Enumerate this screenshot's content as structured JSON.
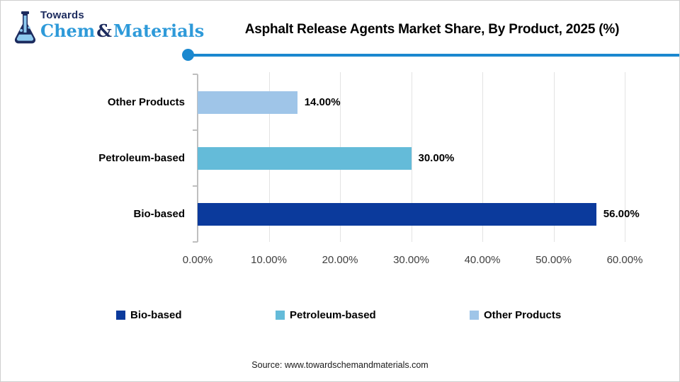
{
  "brand": {
    "towards": "Towards",
    "chem": "Chem",
    "amp": "&",
    "materials": "Materials"
  },
  "header": {
    "title": "Asphalt Release Agents Market Share, By Product, 2025 (%)"
  },
  "chart_data": {
    "type": "bar",
    "orientation": "horizontal",
    "title": "Asphalt Release Agents Market Share, By Product, 2025 (%)",
    "categories": [
      "Other Products",
      "Petroleum-based",
      "Bio-based"
    ],
    "values": [
      14,
      30,
      56
    ],
    "value_labels": [
      "14.00%",
      "30.00%",
      "56.00%"
    ],
    "bar_colors": [
      "#9fc5e8",
      "#64bbd9",
      "#0b3a9c"
    ],
    "x_ticks": [
      "0.00%",
      "10.00%",
      "20.00%",
      "30.00%",
      "40.00%",
      "50.00%",
      "60.00%"
    ],
    "xlim": [
      0,
      60
    ],
    "grid": true,
    "legend_position": "bottom",
    "legend": [
      {
        "label": "Bio-based",
        "color": "#0b3a9c"
      },
      {
        "label": "Petroleum-based",
        "color": "#64bbd9"
      },
      {
        "label": "Other Products",
        "color": "#9fc5e8"
      }
    ]
  },
  "footer": {
    "source": "Source: www.towardschemandmaterials.com"
  },
  "colors": {
    "accent": "#1b88cf",
    "logo_navy": "#1c2b5e",
    "logo_blue": "#2e9ad9"
  }
}
